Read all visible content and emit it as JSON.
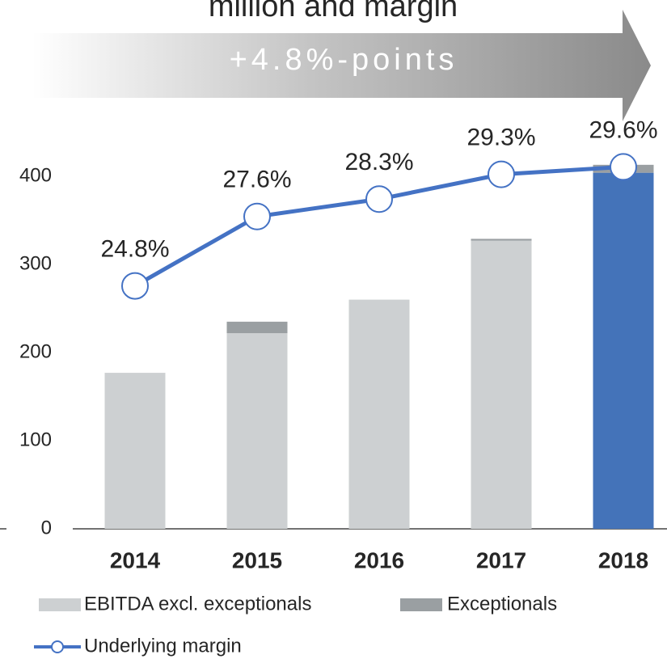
{
  "chart_data": {
    "type": "bar",
    "title": "million and margin",
    "annotation": "+4.8%-points",
    "categories": [
      "2014",
      "2015",
      "2016",
      "2017",
      "2018"
    ],
    "series": [
      {
        "name": "EBITDA excl. exceptionals",
        "color": "#cdd0d2",
        "colors": [
          "#cdd0d2",
          "#cdd0d2",
          "#cdd0d2",
          "#cdd0d2",
          "#4473b9"
        ],
        "values": [
          177,
          222,
          260,
          327,
          404
        ]
      },
      {
        "name": "Exceptionals",
        "color": "#9a9fa2",
        "values": [
          0,
          13,
          0,
          2,
          9
        ]
      },
      {
        "name": "Underlying margin",
        "type": "line",
        "axis": "y2",
        "color": "#4472c4",
        "values": [
          24.8,
          27.6,
          28.3,
          29.3,
          29.6
        ],
        "value_labels": [
          "24.8%",
          "27.6%",
          "28.3%",
          "29.3%",
          "29.6%"
        ]
      }
    ],
    "ylim": [
      0,
      450
    ],
    "yticks": [
      0,
      100,
      200,
      300,
      400
    ],
    "y2lim": [
      15,
      31
    ],
    "stacked": true
  }
}
